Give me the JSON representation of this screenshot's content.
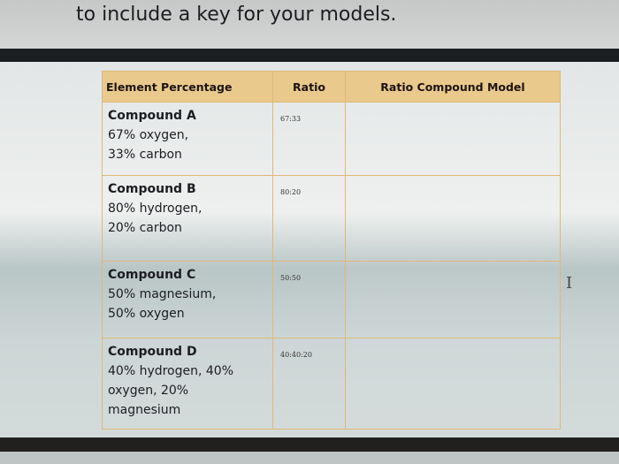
{
  "instruction_text": "to include a key for your models.",
  "table": {
    "headers": [
      "Element  Percentage",
      "Ratio",
      "Ratio Compound Model"
    ],
    "rows": [
      {
        "name": "Compound A",
        "lines": [
          "67% oxygen,",
          "33% carbon"
        ],
        "ratio": "67:33",
        "model": ""
      },
      {
        "name": "Compound B",
        "lines": [
          "80% hydrogen,",
          "20% carbon"
        ],
        "ratio": "80:20",
        "model": ""
      },
      {
        "name": "Compound C",
        "lines": [
          "50% magnesium,",
          "50% oxygen"
        ],
        "ratio": "50:50",
        "model": ""
      },
      {
        "name": "Compound D",
        "lines": [
          "40% hydrogen, 40%",
          "oxygen, 20%",
          "magnesium"
        ],
        "ratio": "40:40:20",
        "model": ""
      }
    ]
  },
  "colors": {
    "header_bg": "#e9c98c",
    "grid": "#e0b878"
  },
  "cursor_icon": "text-cursor-icon"
}
